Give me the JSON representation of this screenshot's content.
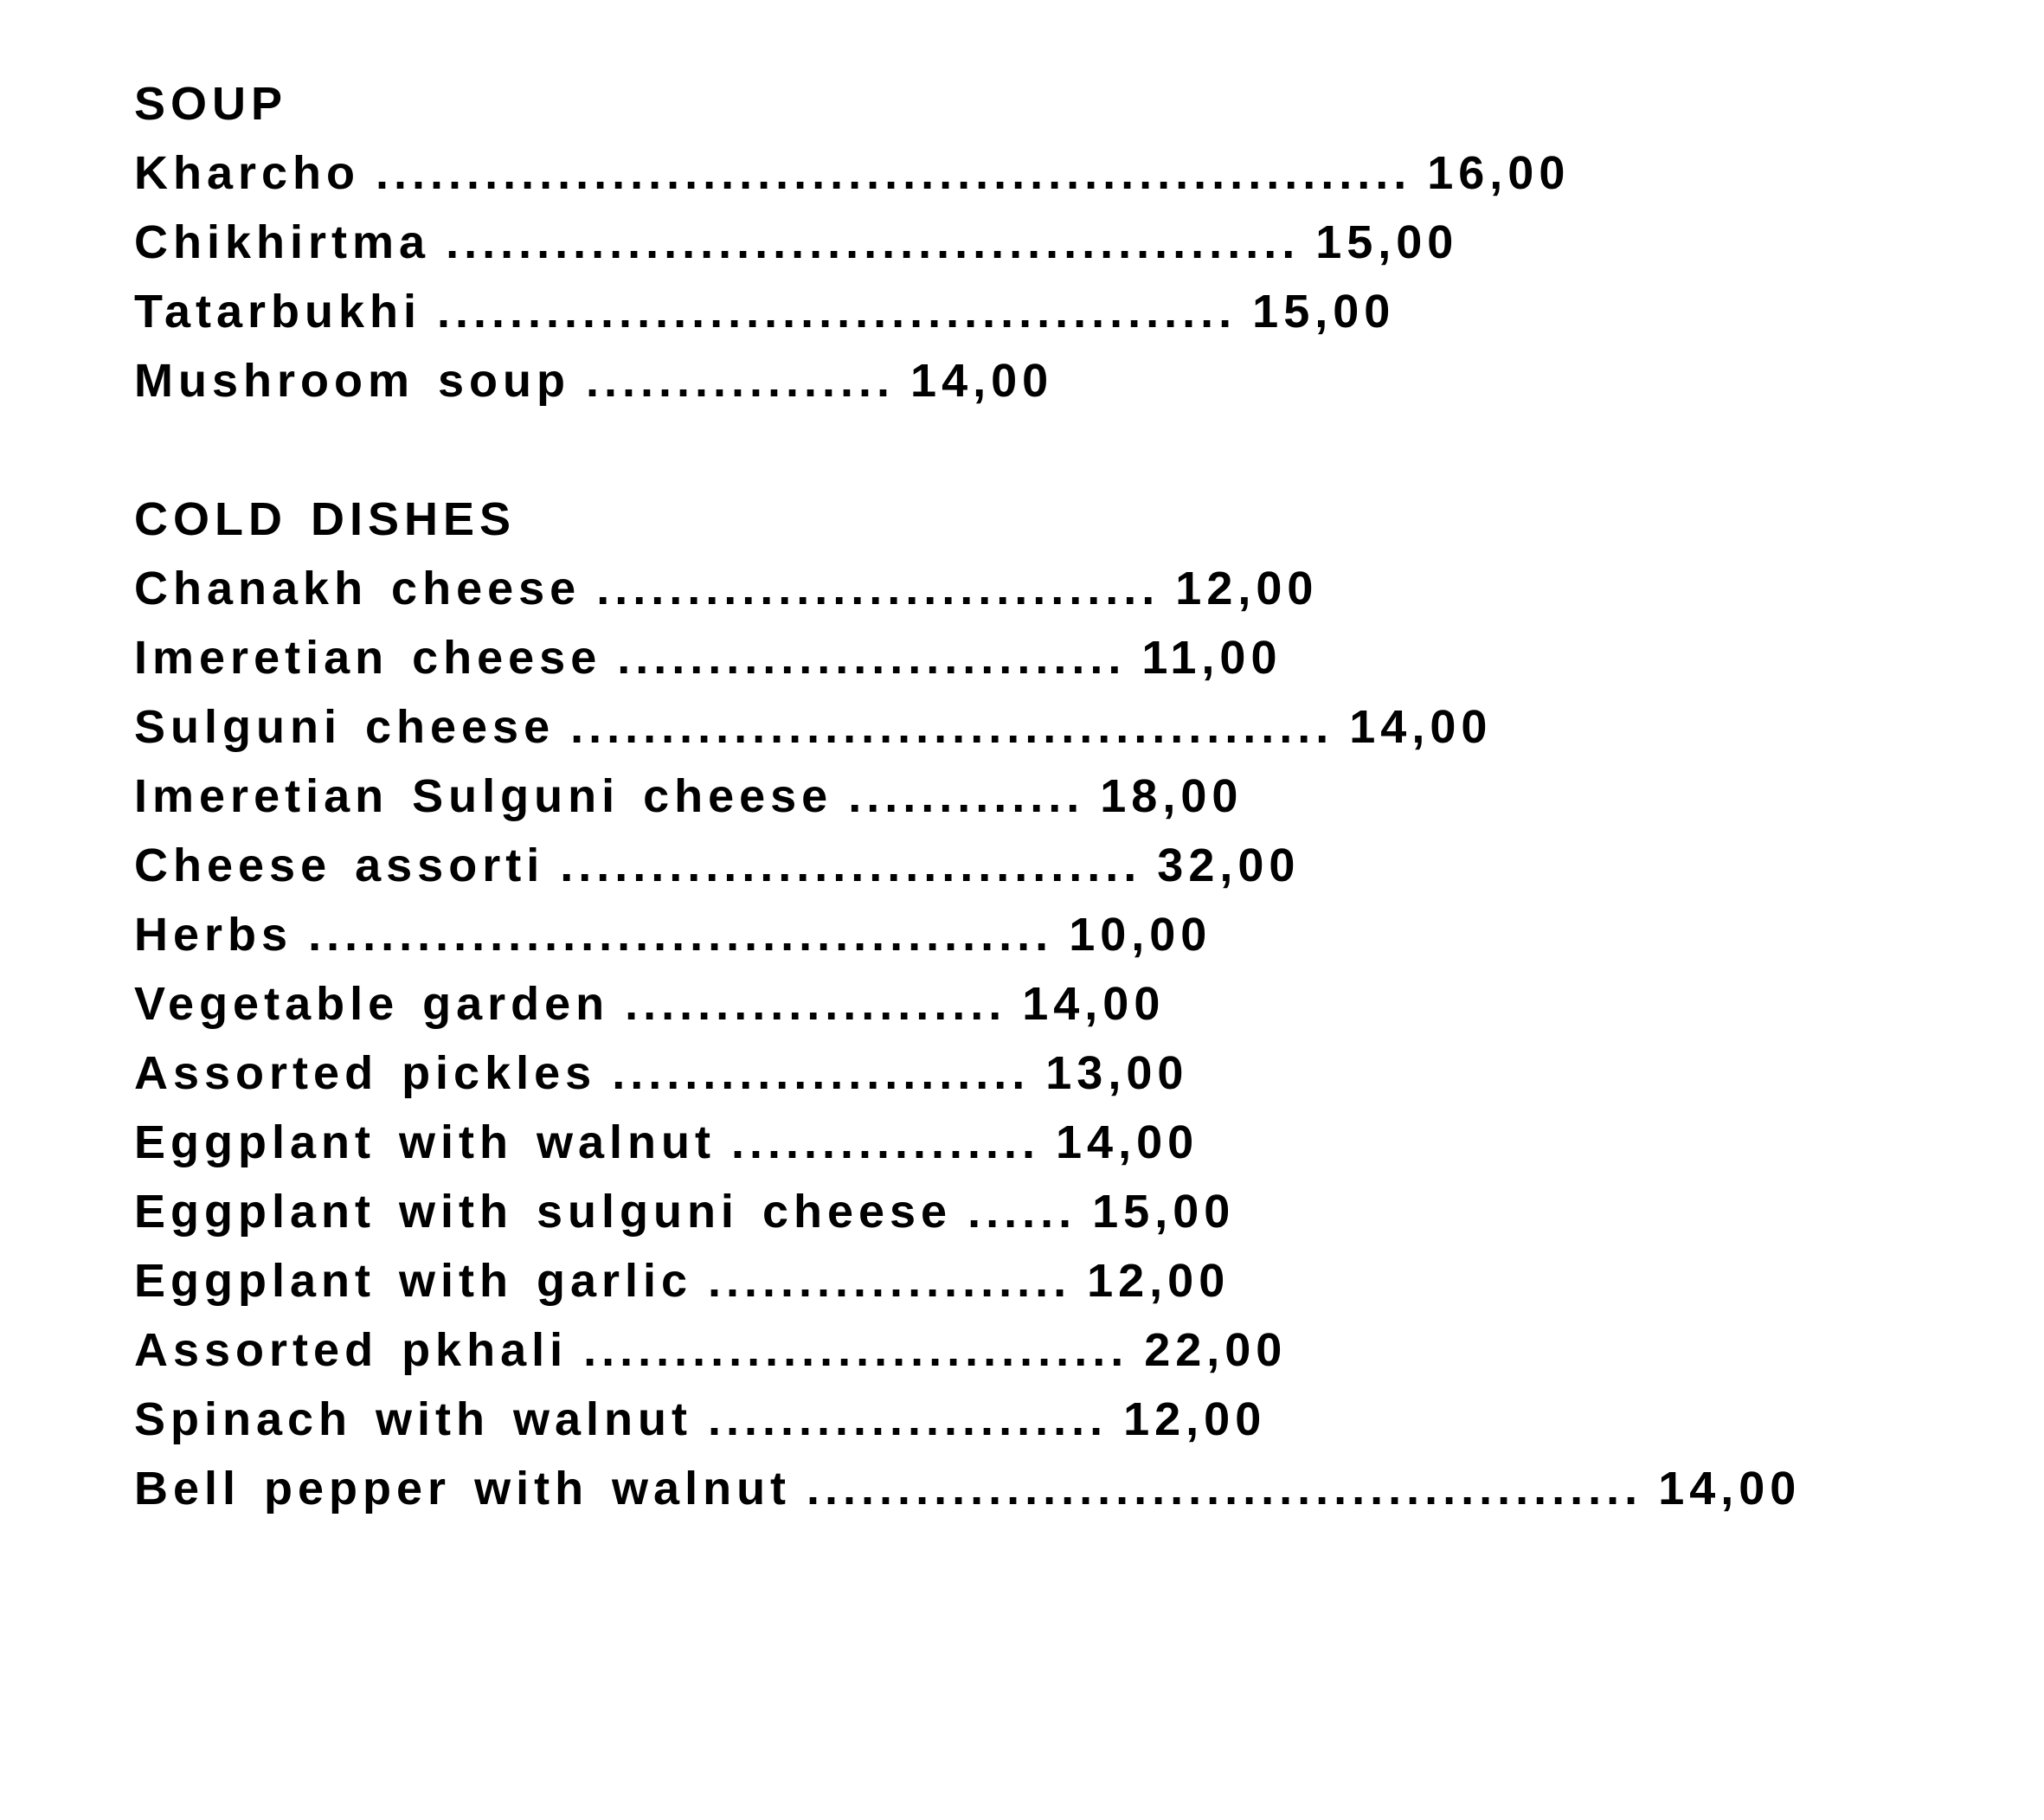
{
  "page": {
    "background_color": "#ffffff",
    "text_color": "#000000"
  },
  "menu": {
    "leader_char": ".",
    "sections": [
      {
        "title": "SOUP",
        "items": [
          {
            "name": "Kharcho",
            "dot_count": 57,
            "price": "16,00"
          },
          {
            "name": "Chikhirtma",
            "dot_count": 47,
            "price": "15,00"
          },
          {
            "name": "Tatarbukhi",
            "dot_count": 44,
            "price": "15,00"
          },
          {
            "name": "Mushroom soup",
            "dot_count": 17,
            "price": "14,00"
          }
        ]
      },
      {
        "title": "COLD DISHES",
        "items": [
          {
            "name": "Chanakh cheese",
            "dot_count": 31,
            "price": "12,00"
          },
          {
            "name": "Imeretian cheese",
            "dot_count": 28,
            "price": "11,00"
          },
          {
            "name": "Sulguni cheese",
            "dot_count": 42,
            "price": "14,00"
          },
          {
            "name": "Imeretian Sulguni cheese",
            "dot_count": 13,
            "price": "18,00"
          },
          {
            "name": "Cheese assorti",
            "dot_count": 32,
            "price": "32,00"
          },
          {
            "name": "Herbs",
            "dot_count": 41,
            "price": "10,00"
          },
          {
            "name": "Vegetable garden",
            "dot_count": 21,
            "price": "14,00"
          },
          {
            "name": "Assorted pickles",
            "dot_count": 23,
            "price": "13,00"
          },
          {
            "name": "Eggplant with walnut",
            "dot_count": 17,
            "price": "14,00"
          },
          {
            "name": "Eggplant with sulguni cheese",
            "dot_count": 6,
            "price": "15,00"
          },
          {
            "name": "Eggplant with garlic",
            "dot_count": 20,
            "price": "12,00"
          },
          {
            "name": "Assorted pkhali",
            "dot_count": 30,
            "price": "22,00"
          },
          {
            "name": "Spinach with walnut",
            "dot_count": 22,
            "price": "12,00"
          },
          {
            "name": "Bell pepper with walnut",
            "dot_count": 46,
            "price": "14,00"
          }
        ]
      }
    ]
  }
}
